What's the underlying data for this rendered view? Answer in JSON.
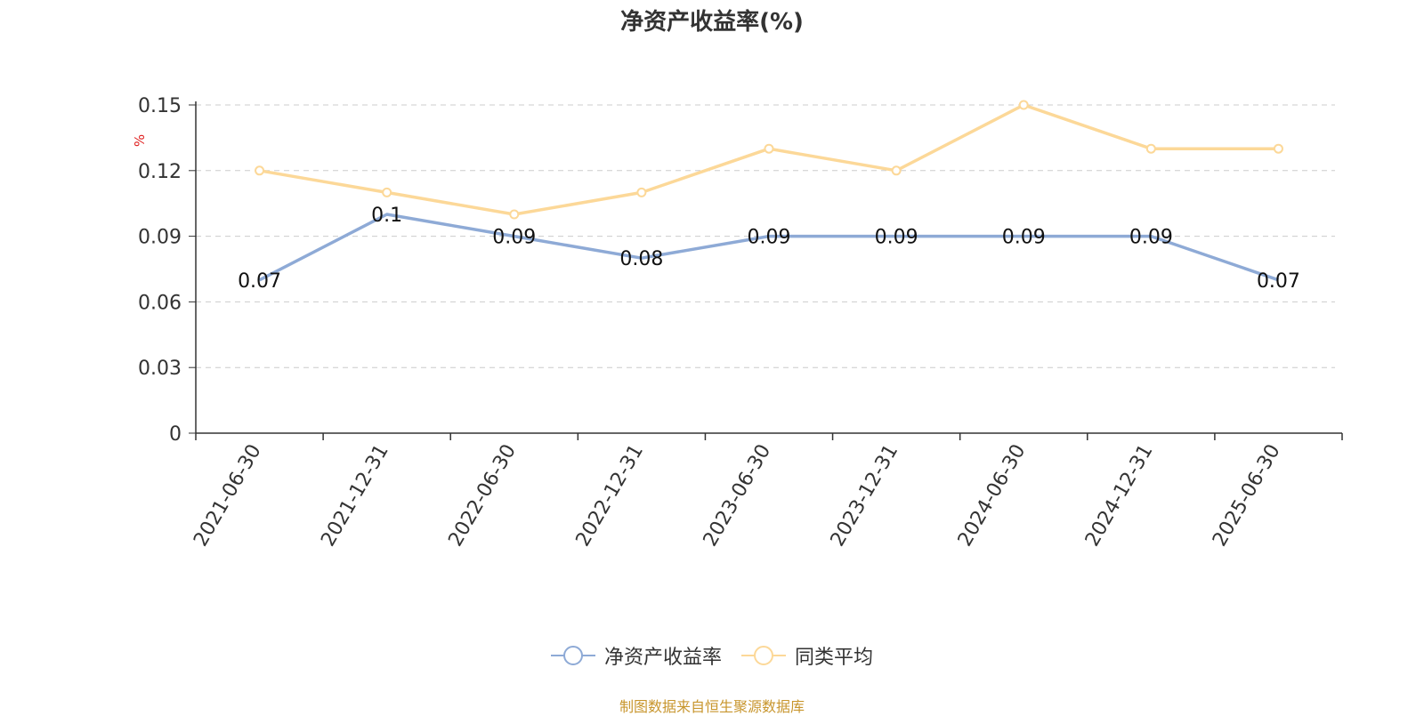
{
  "title": "净资产收益率(%)",
  "source": "制图数据来自恒生聚源数据库",
  "colors": {
    "series_roe": "#8eaad6",
    "series_avg": "#fcd898",
    "unit": "#e02020",
    "grid": "#cccccc",
    "axis": "#333333"
  },
  "chart_data": {
    "type": "line",
    "title": "净资产收益率(%)",
    "ylabel": "%",
    "ylim": [
      0,
      0.15
    ],
    "yticks": [
      "0",
      "0.03",
      "0.06",
      "0.09",
      "0.12",
      "0.15"
    ],
    "grid": true,
    "legend_position": "bottom",
    "categories": [
      "2021-06-30",
      "2021-12-31",
      "2022-06-30",
      "2022-12-31",
      "2023-06-30",
      "2023-12-31",
      "2024-06-30",
      "2024-12-31",
      "2025-06-30"
    ],
    "series": [
      {
        "name": "净资产收益率",
        "values": [
          0.07,
          0.1,
          0.09,
          0.08,
          0.09,
          0.09,
          0.09,
          0.09,
          0.07
        ],
        "labels": [
          "0.07",
          "0.1",
          "0.09",
          "0.08",
          "0.09",
          "0.09",
          "0.09",
          "0.09",
          "0.07"
        ]
      },
      {
        "name": "同类平均",
        "values": [
          0.12,
          0.11,
          0.1,
          0.11,
          0.13,
          0.12,
          0.15,
          0.13,
          0.13
        ]
      }
    ]
  }
}
